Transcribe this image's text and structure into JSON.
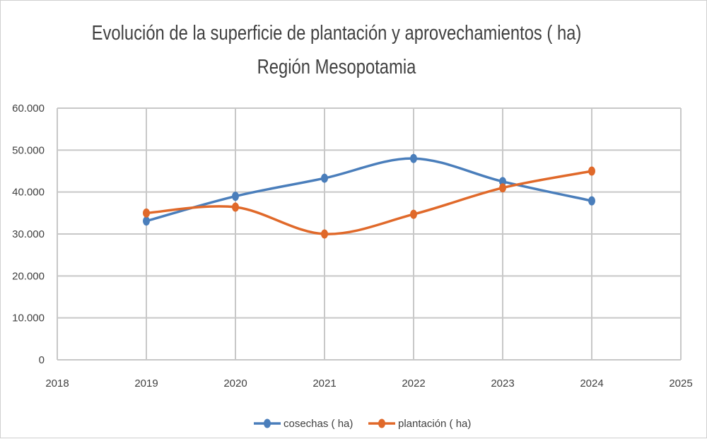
{
  "chart_data": {
    "type": "line",
    "title": "Evolución de la  superficie de plantación y aprovechamientos ( ha)",
    "subtitle": "Región Mesopotamia",
    "xlabel": "",
    "ylabel": "",
    "xlim": [
      2018,
      2025
    ],
    "ylim": [
      0,
      60000
    ],
    "x_ticks": [
      "2018",
      "2019",
      "2020",
      "2021",
      "2022",
      "2023",
      "2024",
      "2025"
    ],
    "y_ticks": [
      "0",
      "10.000",
      "20.000",
      "30.000",
      "40.000",
      "50.000",
      "60.000"
    ],
    "grid": true,
    "legend_position": "bottom",
    "x": [
      2019,
      2020,
      2021,
      2022,
      2023,
      2024
    ],
    "series": [
      {
        "name": "cosechas ( ha)",
        "color": "#4a7ebb",
        "values": [
          33100,
          39000,
          43300,
          48000,
          42500,
          37900
        ]
      },
      {
        "name": "plantación ( ha)",
        "color": "#e0692a",
        "values": [
          35000,
          36400,
          30000,
          34700,
          41000,
          45000
        ]
      }
    ]
  }
}
